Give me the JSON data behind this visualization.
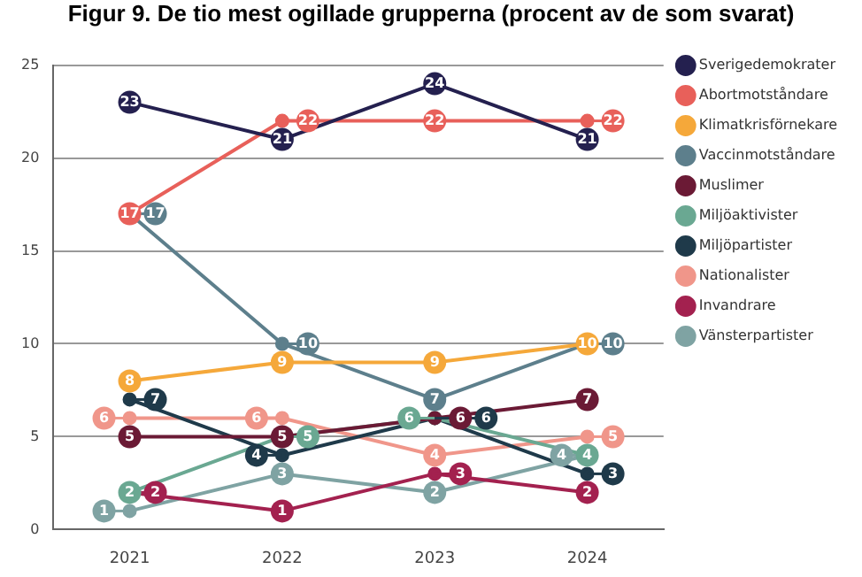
{
  "chart_data": {
    "type": "line",
    "title": "Figur 9. De tio mest ogillade grupperna (procent av de som svarat)",
    "categories": [
      "2021",
      "2022",
      "2023",
      "2024"
    ],
    "series": [
      {
        "name": "Sverigedemokrater",
        "color": "#24204f",
        "values": [
          23,
          21,
          24,
          21
        ]
      },
      {
        "name": "Abortmotståndare",
        "color": "#e8605a",
        "values": [
          17,
          22,
          22,
          22
        ]
      },
      {
        "name": "Klimatkrisförnekare",
        "color": "#f5a83a",
        "values": [
          8,
          9,
          9,
          10
        ]
      },
      {
        "name": "Vaccinmotståndare",
        "color": "#5d7f8c",
        "values": [
          17,
          10,
          7,
          10
        ]
      },
      {
        "name": "Muslimer",
        "color": "#6b1a35",
        "values": [
          5,
          5,
          6,
          7
        ]
      },
      {
        "name": "Miljöaktivister",
        "color": "#6aa892",
        "values": [
          2,
          5,
          6,
          4
        ]
      },
      {
        "name": "Miljöpartister",
        "color": "#1f3a4a",
        "values": [
          7,
          4,
          6,
          3
        ]
      },
      {
        "name": "Nationalister",
        "color": "#f0968a",
        "values": [
          6,
          6,
          4,
          5
        ]
      },
      {
        "name": "Invandrare",
        "color": "#a3214f",
        "values": [
          2,
          1,
          3,
          2
        ]
      },
      {
        "name": "Vänsterpartister",
        "color": "#7fa3a3",
        "values": [
          1,
          3,
          2,
          4
        ]
      }
    ],
    "ylim": [
      0,
      25
    ],
    "yticks": [
      0,
      5,
      10,
      15,
      20,
      25
    ],
    "grid": "y",
    "legend": "right",
    "marker": "circle",
    "line_style": "solid",
    "data_labels": true
  }
}
